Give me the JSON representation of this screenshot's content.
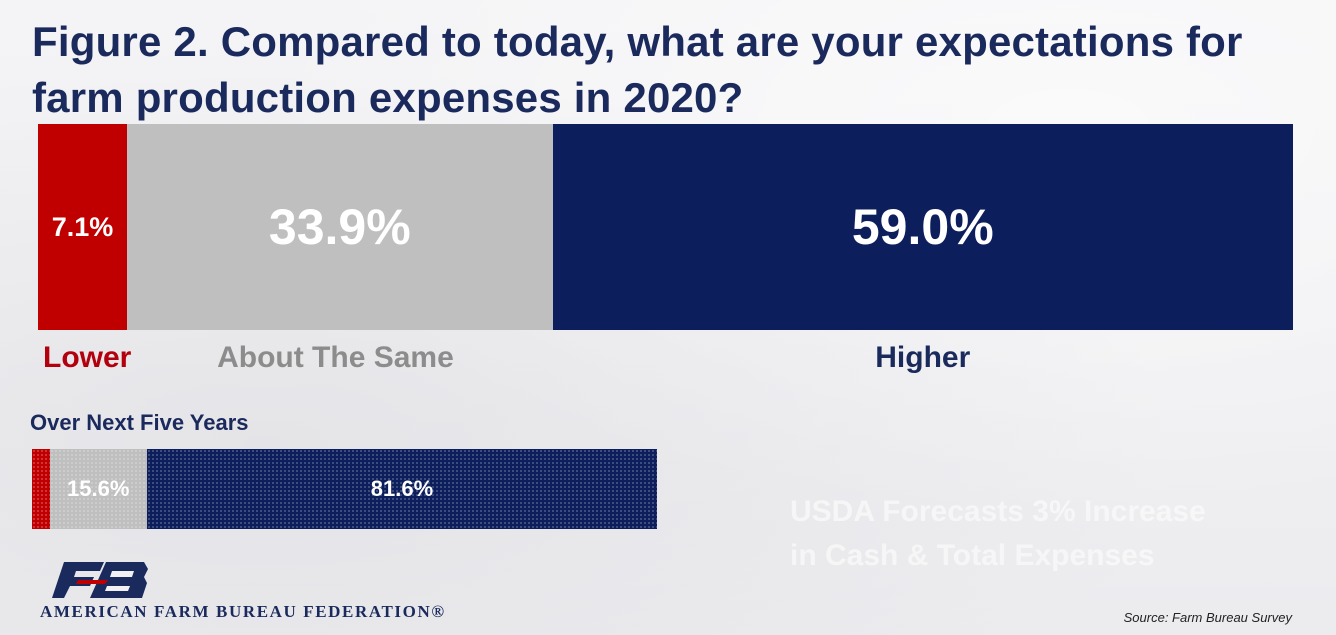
{
  "chart_data": [
    {
      "type": "bar",
      "orientation": "horizontal-stacked",
      "title": "Figure 2. Compared to today, what are your expectations for farm production expenses in 2020?",
      "categories": [
        "Lower",
        "About The Same",
        "Higher"
      ],
      "values": [
        7.1,
        33.9,
        59.0
      ],
      "value_labels": [
        "7.1%",
        "33.9%",
        "59.0%"
      ],
      "unit": "%",
      "colors": [
        "#c00000",
        "#bfbfbf",
        "#0c1f5c"
      ],
      "label_colors": [
        "#b3000d",
        "#8c8c8c",
        "#1b2a5c"
      ]
    },
    {
      "type": "bar",
      "orientation": "horizontal-stacked",
      "title": "Over Next Five Years",
      "values": [
        2.8,
        15.6,
        81.6
      ],
      "value_labels": [
        "",
        "15.6%",
        "81.6%"
      ],
      "unit": "%",
      "colors": [
        "#c00000",
        "#bfbfbf",
        "#0c1f5c"
      ]
    }
  ],
  "note": {
    "line1": "USDA Forecasts 3% Increase",
    "line2": "in Cash & Total Expenses"
  },
  "logo": {
    "text": "AMERICAN FARM BUREAU FEDERATION®"
  },
  "source": "Source: Farm Bureau Survey"
}
